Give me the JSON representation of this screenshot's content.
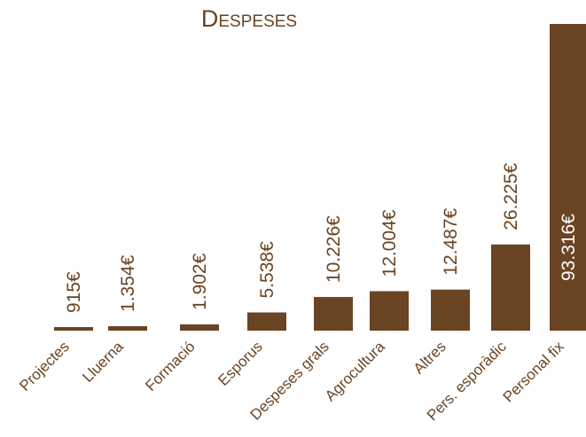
{
  "chart_data": {
    "type": "bar",
    "title": "Despeses",
    "categories": [
      "Projectes",
      "Lluerna",
      "Formació",
      "Esporus",
      "Despeses grals",
      "Agrocultura",
      "Altres",
      "Pers. esporàdic",
      "Personal fix"
    ],
    "values": [
      915,
      1354,
      1902,
      5538,
      10226,
      12004,
      12487,
      26225,
      93316
    ],
    "value_labels": [
      "915€",
      "1.354€",
      "1.902€",
      "5.538€",
      "10.226€",
      "12.004€",
      "12.487€",
      "26.225€",
      "93.316€"
    ],
    "ylim": [
      0,
      93316
    ],
    "grid": false,
    "legend": "none",
    "bar_color": "#6b4423",
    "text_color": "#6b4423"
  }
}
